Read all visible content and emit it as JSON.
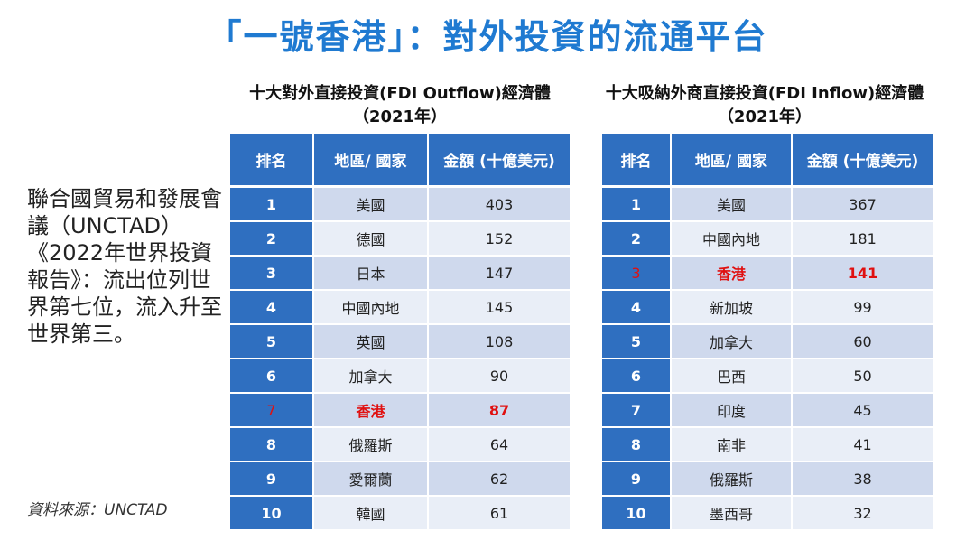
{
  "title": "「一號香港」：對外投資的流通平台",
  "side_text": "聯合國貿易和發展會議（UNCTAD）《2022年世界投資報告》：流出位列世界第七位，流入升至世界第三。",
  "source": "資料來源：UNCTAD",
  "tables": [
    {
      "title_line1": "十大對外直接投資(FDI Outflow)經濟體",
      "title_line2": "（2021年）",
      "headers": [
        "排名",
        "地區/ 國家",
        "金額 (十億美元)"
      ],
      "rows": [
        {
          "rank": "1",
          "name": "美國",
          "value": "403"
        },
        {
          "rank": "2",
          "name": "德國",
          "value": "152"
        },
        {
          "rank": "3",
          "name": "日本",
          "value": "147"
        },
        {
          "rank": "4",
          "name": "中國內地",
          "value": "145"
        },
        {
          "rank": "5",
          "name": "英國",
          "value": "108"
        },
        {
          "rank": "6",
          "name": "加拿大",
          "value": "90"
        },
        {
          "rank": "7",
          "name": "香港",
          "value": "87",
          "highlight": true
        },
        {
          "rank": "8",
          "name": "俄羅斯",
          "value": "64"
        },
        {
          "rank": "9",
          "name": "愛爾蘭",
          "value": "62"
        },
        {
          "rank": "10",
          "name": "韓國",
          "value": "61"
        }
      ]
    },
    {
      "title_line1": "十大吸納外商直接投資(FDI Inflow)經濟體",
      "title_line2": "（2021年）",
      "headers": [
        "排名",
        "地區/ 國家",
        "金額 (十億美元)"
      ],
      "rows": [
        {
          "rank": "1",
          "name": "美國",
          "value": "367"
        },
        {
          "rank": "2",
          "name": "中國內地",
          "value": "181"
        },
        {
          "rank": "3",
          "name": "香港",
          "value": "141",
          "highlight": true
        },
        {
          "rank": "4",
          "name": "新加坡",
          "value": "99"
        },
        {
          "rank": "5",
          "name": "加拿大",
          "value": "60"
        },
        {
          "rank": "6",
          "name": "巴西",
          "value": "50"
        },
        {
          "rank": "7",
          "name": "印度",
          "value": "45"
        },
        {
          "rank": "8",
          "name": "南非",
          "value": "41"
        },
        {
          "rank": "9",
          "name": "俄羅斯",
          "value": "38"
        },
        {
          "rank": "10",
          "name": "墨西哥",
          "value": "32"
        }
      ]
    }
  ],
  "colors": {
    "title": "#1f7ad1",
    "header": "#2f6fc0",
    "row_dark": "#cfd9ed",
    "row_light": "#e9eef7",
    "highlight": "#e01010"
  }
}
